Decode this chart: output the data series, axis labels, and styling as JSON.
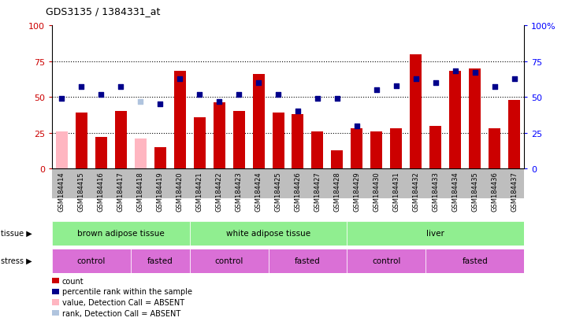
{
  "title": "GDS3135 / 1384331_at",
  "samples": [
    "GSM184414",
    "GSM184415",
    "GSM184416",
    "GSM184417",
    "GSM184418",
    "GSM184419",
    "GSM184420",
    "GSM184421",
    "GSM184422",
    "GSM184423",
    "GSM184424",
    "GSM184425",
    "GSM184426",
    "GSM184427",
    "GSM184428",
    "GSM184429",
    "GSM184430",
    "GSM184431",
    "GSM184432",
    "GSM184433",
    "GSM184434",
    "GSM184435",
    "GSM184436",
    "GSM184437"
  ],
  "bar_values": [
    26,
    39,
    22,
    40,
    21,
    15,
    68,
    36,
    46,
    40,
    66,
    39,
    38,
    26,
    13,
    28,
    26,
    28,
    80,
    30,
    68,
    70,
    28,
    48
  ],
  "bar_absent": [
    true,
    false,
    false,
    false,
    true,
    false,
    false,
    false,
    false,
    false,
    false,
    false,
    false,
    false,
    false,
    false,
    false,
    false,
    false,
    false,
    false,
    false,
    false,
    false
  ],
  "blue_values": [
    49,
    57,
    52,
    57,
    47,
    45,
    63,
    52,
    47,
    52,
    60,
    52,
    40,
    49,
    49,
    30,
    55,
    58,
    63,
    60,
    68,
    67,
    57,
    63
  ],
  "blue_absent": [
    false,
    false,
    false,
    false,
    true,
    false,
    false,
    false,
    false,
    false,
    false,
    false,
    false,
    false,
    false,
    false,
    false,
    false,
    false,
    false,
    false,
    false,
    false,
    false
  ],
  "tissue_defs": [
    [
      0,
      7,
      "brown adipose tissue",
      "#90EE90"
    ],
    [
      7,
      15,
      "white adipose tissue",
      "#90EE90"
    ],
    [
      15,
      24,
      "liver",
      "#90EE90"
    ]
  ],
  "stress_defs": [
    [
      0,
      4,
      "control",
      "#DA70D6"
    ],
    [
      4,
      7,
      "fasted",
      "#DA70D6"
    ],
    [
      7,
      11,
      "control",
      "#DA70D6"
    ],
    [
      11,
      15,
      "fasted",
      "#DA70D6"
    ],
    [
      15,
      19,
      "control",
      "#DA70D6"
    ],
    [
      19,
      24,
      "fasted",
      "#DA70D6"
    ]
  ],
  "bar_color_normal": "#CC0000",
  "bar_color_absent": "#FFB6C1",
  "blue_color_normal": "#00008B",
  "blue_color_absent": "#B0C4DE",
  "tick_bg_color": "#BEBEBE",
  "legend_items": [
    [
      "#CC0000",
      "count"
    ],
    [
      "#00008B",
      "percentile rank within the sample"
    ],
    [
      "#FFB6C1",
      "value, Detection Call = ABSENT"
    ],
    [
      "#B0C4DE",
      "rank, Detection Call = ABSENT"
    ]
  ],
  "yticks": [
    0,
    25,
    50,
    75,
    100
  ],
  "yticklabels_right": [
    "0",
    "25",
    "50",
    "75",
    "100%"
  ],
  "hlines": [
    25,
    50,
    75
  ]
}
